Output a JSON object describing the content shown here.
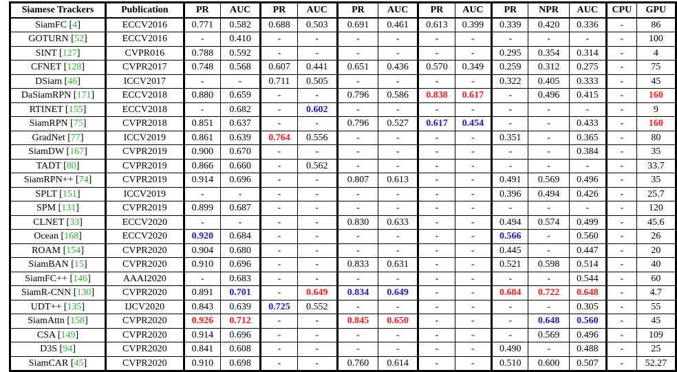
{
  "columns": [
    "Siamese Trackers",
    "Publication",
    "PR",
    "AUC",
    "PR",
    "AUC",
    "PR",
    "AUC",
    "PR",
    "AUC",
    "PR",
    "NPR",
    "AUC",
    "CPU",
    "GPU"
  ],
  "rows": [
    {
      "name": "SiamFC",
      "ref": "4",
      "cells": [
        "ECCV2016",
        "0.771",
        "0.582",
        "0.688",
        "0.503",
        "0.691",
        "0.461",
        "0.613",
        "0.399",
        "0.339",
        "0.420",
        "0.336",
        "-",
        "86"
      ]
    },
    {
      "name": "GOTURN",
      "ref": "52",
      "cells": [
        "ECCV2016",
        "-",
        "0.410",
        "-",
        "-",
        "-",
        "-",
        "-",
        "-",
        "-",
        "-",
        "-",
        "-",
        "100"
      ]
    },
    {
      "name": "SINT",
      "ref": "127",
      "cells": [
        "CVPR016",
        "0.788",
        "0.592",
        "-",
        "-",
        "-",
        "-",
        "-",
        "-",
        "0.295",
        "0.354",
        "0.314",
        "-",
        "4"
      ]
    },
    {
      "name": "CFNET",
      "ref": "128",
      "cells": [
        "CVPR2017",
        "0.748",
        "0.568",
        "0.607",
        "0.441",
        "0.651",
        "0.436",
        "0.570",
        "0.349",
        "0.259",
        "0.312",
        "0.275",
        "-",
        "75"
      ]
    },
    {
      "name": "DSiam",
      "ref": "46",
      "cells": [
        "ICCV2017",
        "-",
        "-",
        "0.711",
        "0.505",
        "-",
        "-",
        "-",
        "-",
        "0.322",
        "0.405",
        "0.333",
        "-",
        "45"
      ]
    },
    {
      "name": "DaSiamRPN",
      "ref": "171",
      "cells": [
        "ECCV2018",
        "0.880",
        "0.659",
        "-",
        "-",
        "0.796",
        "0.586",
        "0.838",
        "0.617",
        "-",
        "0.496",
        "0.415",
        "-",
        "160"
      ]
    },
    {
      "name": "RTINET",
      "ref": "155",
      "cells": [
        "ECCV2018",
        "-",
        "0.682",
        "-",
        "0.602",
        "-",
        "-",
        "-",
        "-",
        "-",
        "-",
        "-",
        "-",
        "9"
      ]
    },
    {
      "name": "SiamRPN",
      "ref": "75",
      "cells": [
        "CVPR2018",
        "0.851",
        "0.637",
        "-",
        "-",
        "0.796",
        "0.527",
        "0.617",
        "0.454",
        "-",
        "-",
        "0.433",
        "-",
        "160"
      ]
    },
    {
      "name": "GradNet",
      "ref": "77",
      "cells": [
        "ICCV2019",
        "0.861",
        "0.639",
        "0.764",
        "0.556",
        "-",
        "-",
        "-",
        "-",
        "0.351",
        "-",
        "0.365",
        "-",
        "80"
      ]
    },
    {
      "name": "SiamDW",
      "ref": "167",
      "cells": [
        "CVPR2019",
        "0.900",
        "0.670",
        "-",
        "-",
        "-",
        "-",
        "-",
        "-",
        "-",
        "-",
        "0.384",
        "-",
        "35"
      ]
    },
    {
      "name": "TADT",
      "ref": "80",
      "cells": [
        "CVPR2019",
        "0.866",
        "0.660",
        "-",
        "0.562",
        "-",
        "-",
        "-",
        "-",
        "-",
        "-",
        "-",
        "-",
        "33.7"
      ]
    },
    {
      "name": "SiamRPN++",
      "ref": "74",
      "cells": [
        "CVPR2019",
        "0.914",
        "0.696",
        "-",
        "-",
        "0.807",
        "0.613",
        "-",
        "-",
        "0.491",
        "0.569",
        "0.496",
        "-",
        "35"
      ]
    },
    {
      "name": "SPLT",
      "ref": "151",
      "cells": [
        "ICCV2019",
        "-",
        "-",
        "-",
        "-",
        "-",
        "-",
        "-",
        "-",
        "0.396",
        "0.494",
        "0.426",
        "-",
        "25.7"
      ]
    },
    {
      "name": "SPM",
      "ref": "131",
      "cells": [
        "CVPR2019",
        "0.899",
        "0.687",
        "-",
        "-",
        "-",
        "-",
        "-",
        "-",
        "-",
        "-",
        "-",
        "-",
        "120"
      ]
    },
    {
      "name": "CLNET",
      "ref": "33",
      "cells": [
        "ECCV2020",
        "-",
        "-",
        "-",
        "-",
        "0.830",
        "0.633",
        "-",
        "-",
        "0.494",
        "0.574",
        "0.499",
        "-",
        "45.6"
      ]
    },
    {
      "name": "Ocean",
      "ref": "168",
      "cells": [
        "ECCV2020",
        "0.920",
        "0.684",
        "-",
        "-",
        "-",
        "-",
        "-",
        "-",
        "0.566",
        "-",
        "0.560",
        "-",
        "26"
      ]
    },
    {
      "name": "ROAM",
      "ref": "154",
      "cells": [
        "CVPR2020",
        "0.904",
        "0.680",
        "-",
        "-",
        "-",
        "-",
        "-",
        "-",
        "0.445",
        "-",
        "0.447",
        "-",
        "20"
      ]
    },
    {
      "name": "SiamBAN",
      "ref": "15",
      "cells": [
        "CVPR2020",
        "0.910",
        "0.696",
        "-",
        "-",
        "0.833",
        "0.631",
        "-",
        "-",
        "0.521",
        "0.598",
        "0.514",
        "-",
        "40"
      ]
    },
    {
      "name": "SiamFC++",
      "ref": "146",
      "cells": [
        "AAAI2020",
        "-",
        "0.683",
        "-",
        "-",
        "-",
        "-",
        "-",
        "-",
        "-",
        "-",
        "0.544",
        "-",
        "60"
      ]
    },
    {
      "name": "SiamR-CNN",
      "ref": "130",
      "cells": [
        "CVPR2020",
        "0.891",
        "0.701",
        "-",
        "0.649",
        "0.834",
        "0.649",
        "-",
        "-",
        "0.684",
        "0.722",
        "0.648",
        "-",
        "4.7"
      ]
    },
    {
      "name": "UDT++",
      "ref": "135",
      "cells": [
        "IJCV2020",
        "0.843",
        "0.639",
        "0.725",
        "0.552",
        "-",
        "-",
        "-",
        "-",
        "-",
        "-",
        "0.305",
        "-",
        "55"
      ]
    },
    {
      "name": "SiamAttn",
      "ref": "158",
      "cells": [
        "CVPR2020",
        "0.926",
        "0.712",
        "-",
        "-",
        "0.845",
        "0.650",
        "-",
        "-",
        "-",
        "0.648",
        "0.560",
        "-",
        "45"
      ]
    },
    {
      "name": "CSA",
      "ref": "149",
      "cells": [
        "CVPR2020",
        "0.914",
        "0.696",
        "-",
        "-",
        "-",
        "-",
        "-",
        "-",
        "-",
        "0.569",
        "0.496",
        "-",
        "109"
      ]
    },
    {
      "name": "D3S",
      "ref": "94",
      "cells": [
        "CVPR2020",
        "0.841",
        "0.608",
        "-",
        "-",
        "-",
        "-",
        "-",
        "-",
        "0.490",
        "-",
        "0.488",
        "-",
        "25"
      ]
    },
    {
      "name": "SiamCAR",
      "ref": "45",
      "cells": [
        "CVPR2020",
        "0.910",
        "0.698",
        "-",
        "-",
        "0.760",
        "0.614",
        "-",
        "-",
        "0.510",
        "0.600",
        "0.507",
        "-",
        "52.27"
      ]
    }
  ],
  "highlights": {
    "red": [
      [
        5,
        7
      ],
      [
        5,
        8
      ],
      [
        5,
        13
      ],
      [
        7,
        13
      ],
      [
        8,
        3
      ],
      [
        19,
        4
      ],
      [
        19,
        9
      ],
      [
        19,
        10
      ],
      [
        19,
        11
      ],
      [
        21,
        1
      ],
      [
        21,
        2
      ],
      [
        21,
        5
      ],
      [
        21,
        6
      ]
    ],
    "blue": [
      [
        6,
        4
      ],
      [
        7,
        7
      ],
      [
        7,
        8
      ],
      [
        15,
        1
      ],
      [
        15,
        9
      ],
      [
        19,
        2
      ],
      [
        19,
        5
      ],
      [
        19,
        6
      ],
      [
        20,
        3
      ],
      [
        21,
        10
      ],
      [
        21,
        11
      ]
    ]
  },
  "colors": {
    "red": "#ff1a1a",
    "blue": "#1a1acc",
    "reference": "#2db32d"
  }
}
